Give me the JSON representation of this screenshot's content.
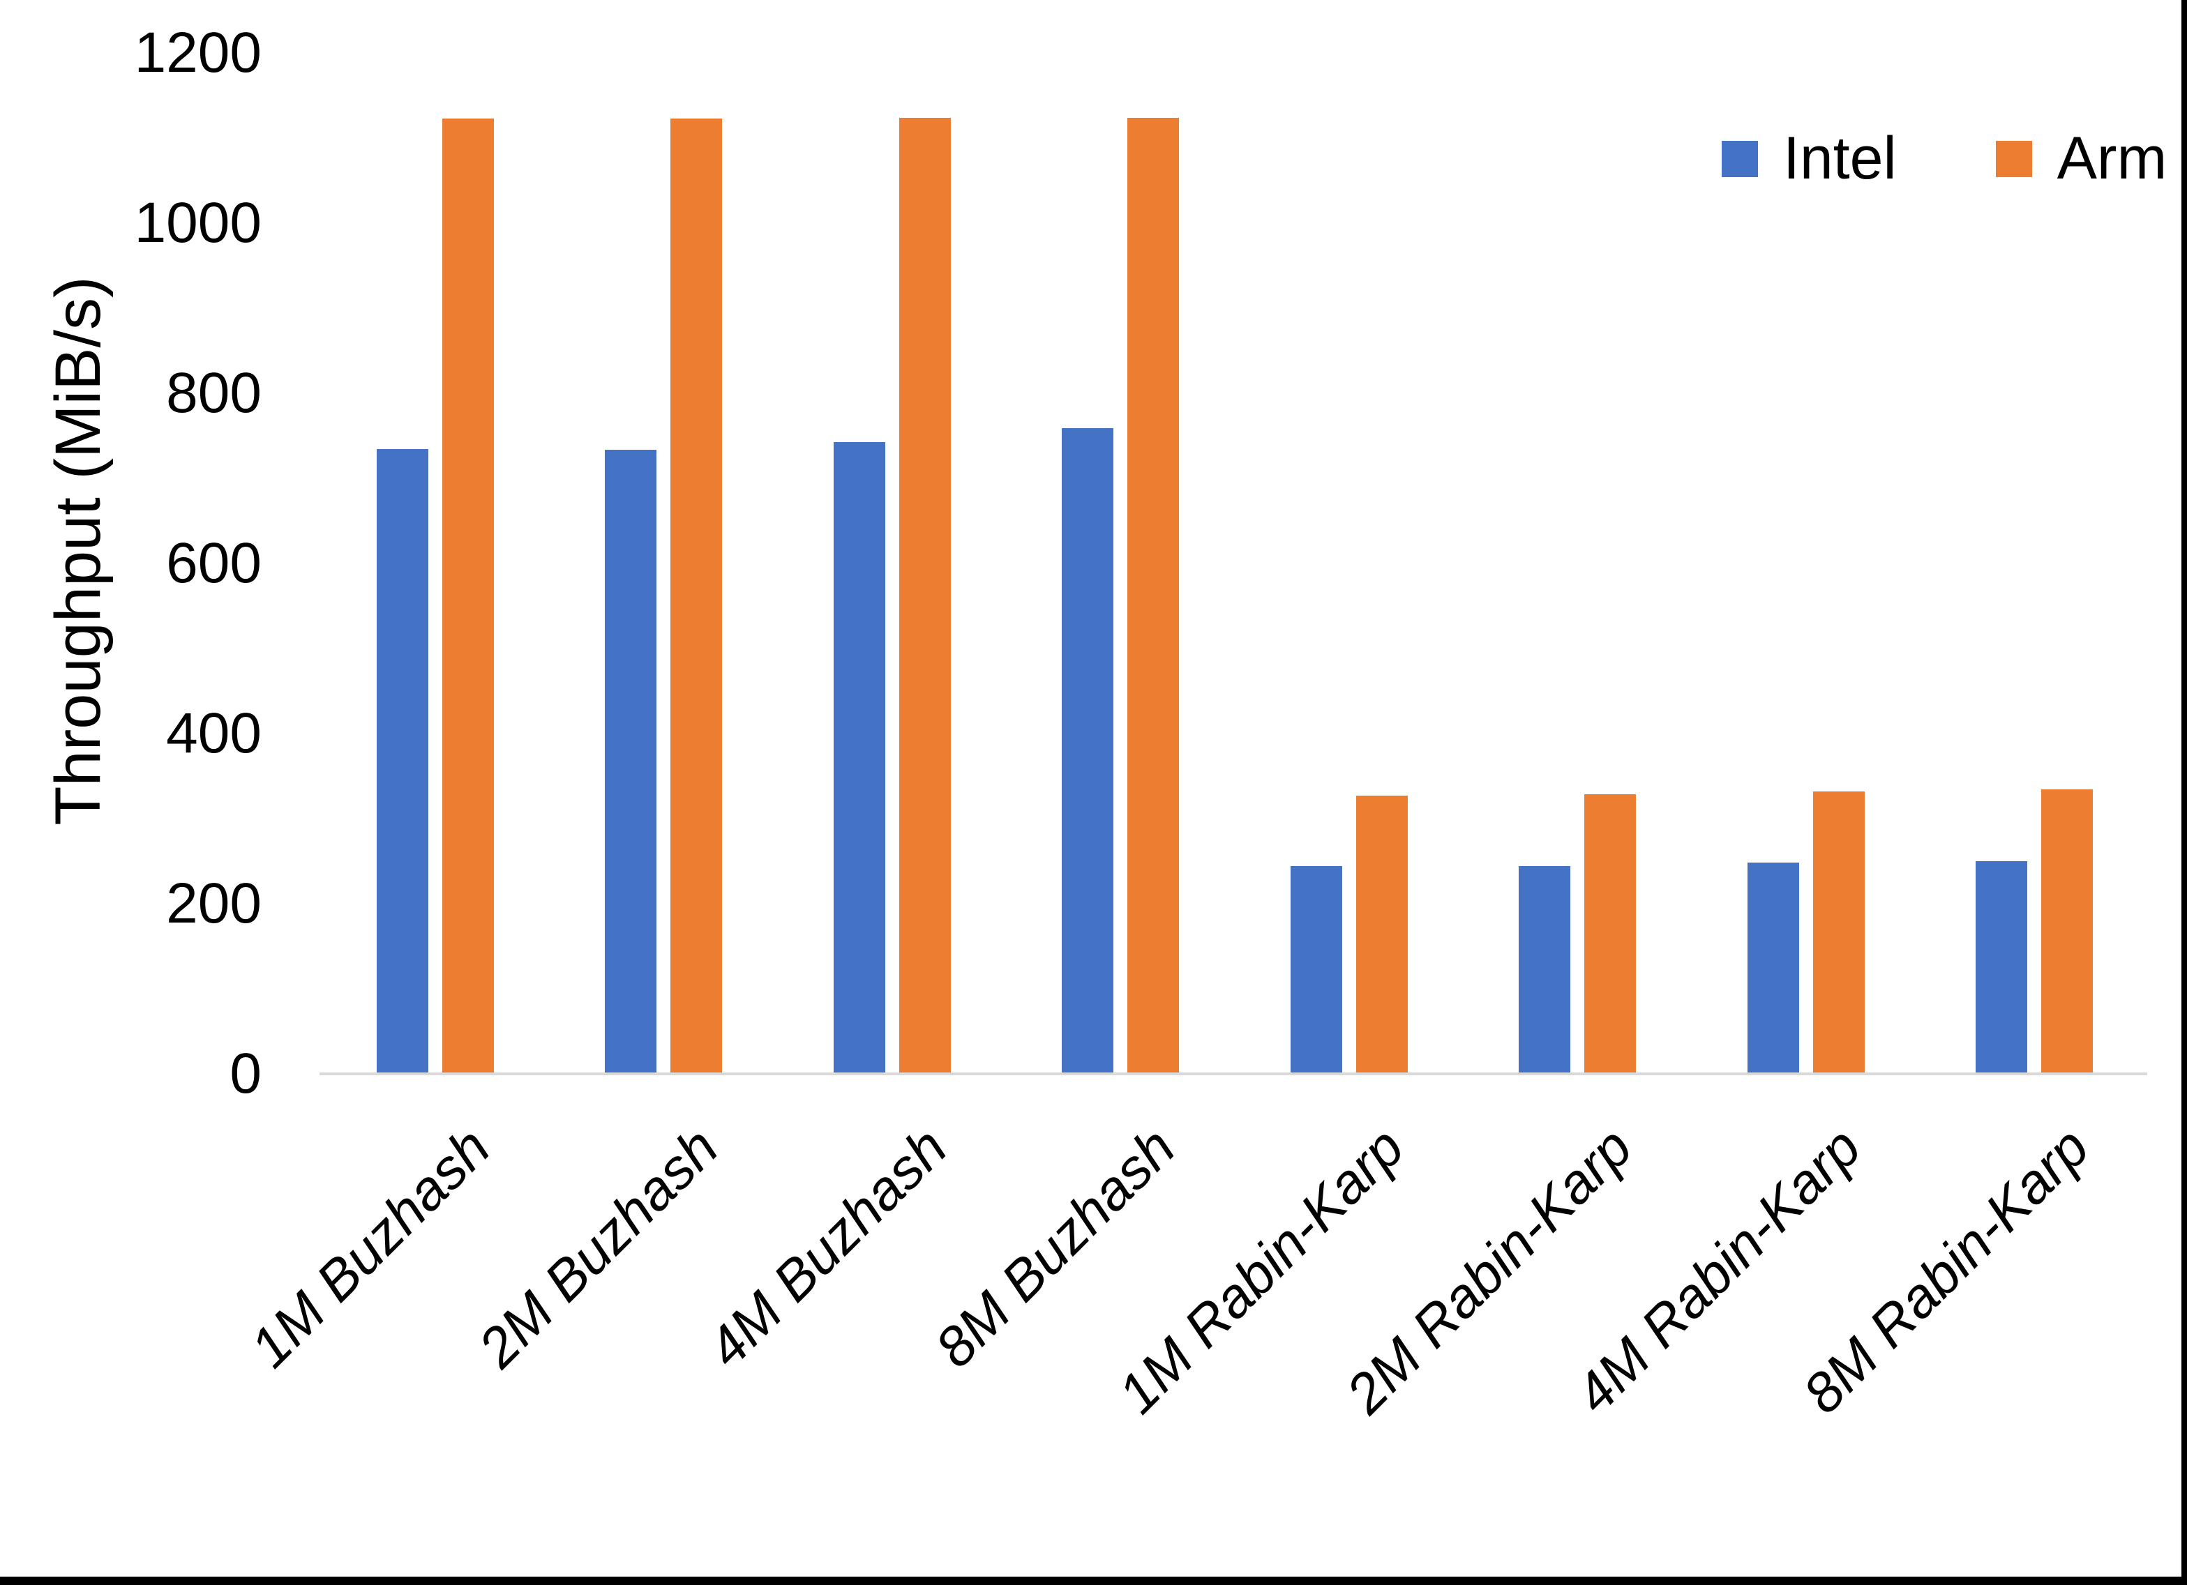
{
  "chart_data": {
    "type": "bar",
    "title": "",
    "y_axis_title": "Throughput (MiB/s)",
    "categories": [
      "1M Buzhash",
      "2M Buzhash",
      "4M Buzhash",
      "8M Buzhash",
      "1M Rabin-Karp",
      "2M Rabin-Karp",
      "4M Rabin-Karp",
      "8M Rabin-Karp"
    ],
    "series": [
      {
        "name": "Intel",
        "color": "#4472C4",
        "values": [
          733,
          732,
          741,
          757,
          243,
          243,
          247,
          248
        ]
      },
      {
        "name": "Arm",
        "color": "#ED7D31",
        "values": [
          1121,
          1121,
          1122,
          1122,
          325,
          327,
          330,
          333
        ]
      }
    ],
    "ylim": [
      0,
      1200
    ],
    "yticks": [
      0,
      200,
      400,
      600,
      800,
      1000,
      1200
    ],
    "grid": false,
    "legend_position": "top-right"
  },
  "colors": {
    "background": "#FFFFFF",
    "axis_line": "#D9D9D9",
    "text": "#000000",
    "border": "#000000"
  }
}
